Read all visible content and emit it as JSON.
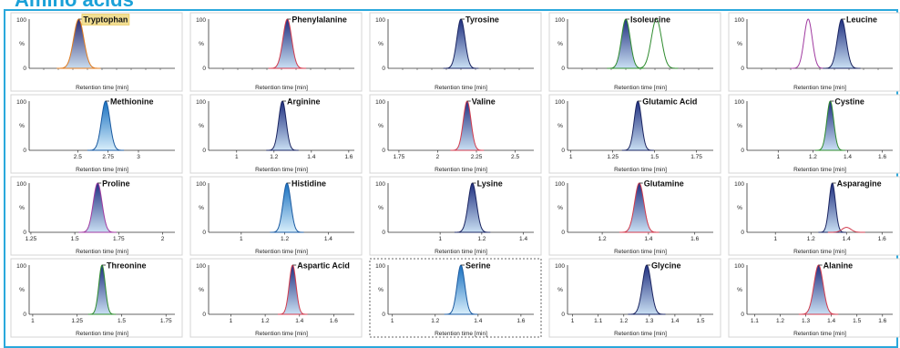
{
  "header": {
    "title": "Amino acids"
  },
  "colors": {
    "accent": "#2aa8dc",
    "peak_dark": "#1f2f80",
    "peak_light": "#c9dff3",
    "peak_cyan_dark": "#1770c0",
    "peak_cyan_light": "#d8eefb",
    "trace_red": "#d13a4c",
    "trace_green": "#2e8b2e",
    "trace_purple": "#a03aa0",
    "label_highlight": "#f3df92"
  },
  "chart_data": [
    {
      "type": "line",
      "title": "Tryptophan",
      "highlight": true,
      "xlabel": "Retention time [min]",
      "ylabel": "%",
      "y_ticks": [
        "100",
        "0"
      ],
      "x_ticks": [],
      "xlim": [
        0,
        10
      ],
      "ylim": [
        0,
        100
      ],
      "peaks": [
        {
          "center": 3.4,
          "width": 0.35,
          "height": 100,
          "style": "orange"
        }
      ]
    },
    {
      "type": "line",
      "title": "Phenylalanine",
      "xlabel": "Retention time [min]",
      "ylabel": "%",
      "y_ticks": [
        "100",
        "0"
      ],
      "x_ticks": [],
      "xlim": [
        0,
        10
      ],
      "ylim": [
        0,
        100
      ],
      "peaks": [
        {
          "center": 5.4,
          "width": 0.3,
          "height": 100,
          "style": "red"
        }
      ]
    },
    {
      "type": "line",
      "title": "Tyrosine",
      "xlabel": "Retention time [min]",
      "ylabel": "%",
      "y_ticks": [
        "100",
        "0"
      ],
      "x_ticks": [],
      "xlim": [
        0,
        10
      ],
      "ylim": [
        0,
        100
      ],
      "peaks": [
        {
          "center": 5.0,
          "width": 0.28,
          "height": 100,
          "style": "dark"
        }
      ]
    },
    {
      "type": "line",
      "title": "Isoleucine",
      "xlabel": "Retention time [min]",
      "ylabel": "%",
      "y_ticks": [
        "100",
        "0"
      ],
      "x_ticks": [],
      "xlim": [
        0,
        10
      ],
      "ylim": [
        0,
        100
      ],
      "peaks": [
        {
          "center": 4.0,
          "width": 0.3,
          "height": 100,
          "style": "green"
        },
        {
          "center": 6.1,
          "width": 0.35,
          "height": 100,
          "style": "green_outline"
        }
      ]
    },
    {
      "type": "line",
      "title": "Leucine",
      "xlabel": "Retention time [min]",
      "ylabel": "%",
      "y_ticks": [
        "100",
        "0"
      ],
      "x_ticks": [],
      "xlim": [
        0,
        10
      ],
      "ylim": [
        0,
        100
      ],
      "peaks": [
        {
          "center": 4.2,
          "width": 0.28,
          "height": 100,
          "style": "purple_outline"
        },
        {
          "center": 6.5,
          "width": 0.3,
          "height": 100,
          "style": "dark"
        }
      ]
    },
    {
      "type": "line",
      "title": "Methionine",
      "xlabel": "Retention time [min]",
      "ylabel": "%",
      "y_ticks": [
        "100",
        "0"
      ],
      "x_ticks": [
        "2.5",
        "2.75",
        "3"
      ],
      "xlim": [
        2.1,
        3.3
      ],
      "ylim": [
        0,
        100
      ],
      "peaks": [
        {
          "center": 2.73,
          "width": 0.035,
          "height": 100,
          "style": "cyan"
        }
      ]
    },
    {
      "type": "line",
      "title": "Arginine",
      "xlabel": "Retention time [min]",
      "ylabel": "%",
      "y_ticks": [
        "100",
        "0"
      ],
      "x_ticks": [
        "1",
        "1.2",
        "1.4",
        "1.6"
      ],
      "xlim": [
        0.85,
        1.63
      ],
      "ylim": [
        0,
        100
      ],
      "peaks": [
        {
          "center": 1.245,
          "width": 0.02,
          "height": 100,
          "style": "dark"
        }
      ]
    },
    {
      "type": "line",
      "title": "Valine",
      "xlabel": "Retention time [min]",
      "ylabel": "%",
      "y_ticks": [
        "100",
        "0"
      ],
      "x_ticks": [
        "1.75",
        "2",
        "2.25",
        "2.5"
      ],
      "xlim": [
        1.68,
        2.62
      ],
      "ylim": [
        0,
        100
      ],
      "peaks": [
        {
          "center": 2.19,
          "width": 0.025,
          "height": 100,
          "style": "red"
        }
      ]
    },
    {
      "type": "line",
      "title": "Glutamic Acid",
      "xlabel": "Retention time [min]",
      "ylabel": "%",
      "y_ticks": [
        "100",
        "0"
      ],
      "x_ticks": [
        "1",
        "1.25",
        "1.5",
        "1.75"
      ],
      "xlim": [
        0.98,
        1.85
      ],
      "ylim": [
        0,
        100
      ],
      "peaks": [
        {
          "center": 1.4,
          "width": 0.022,
          "height": 100,
          "style": "dark"
        }
      ]
    },
    {
      "type": "line",
      "title": "Cystine",
      "xlabel": "Retention time [min]",
      "ylabel": "%",
      "y_ticks": [
        "100",
        "0"
      ],
      "x_ticks": [
        "1",
        "1.2",
        "1.4",
        "1.6"
      ],
      "xlim": [
        0.82,
        1.66
      ],
      "ylim": [
        0,
        100
      ],
      "peaks": [
        {
          "center": 1.3,
          "width": 0.02,
          "height": 100,
          "style": "green"
        }
      ]
    },
    {
      "type": "line",
      "title": "Proline",
      "xlabel": "Retention time [min]",
      "ylabel": "%",
      "y_ticks": [
        "100",
        "0"
      ],
      "x_ticks": [
        "1.25",
        "1.5",
        "1.75",
        "2"
      ],
      "xlim": [
        1.24,
        2.07
      ],
      "ylim": [
        0,
        100
      ],
      "peaks": [
        {
          "center": 1.63,
          "width": 0.025,
          "height": 100,
          "style": "purple"
        }
      ]
    },
    {
      "type": "line",
      "title": "Histidine",
      "xlabel": "Retention time [min]",
      "ylabel": "%",
      "y_ticks": [
        "100",
        "0"
      ],
      "x_ticks": [
        "1",
        "1.2",
        "1.4"
      ],
      "xlim": [
        0.85,
        1.52
      ],
      "ylim": [
        0,
        100
      ],
      "peaks": [
        {
          "center": 1.21,
          "width": 0.018,
          "height": 100,
          "style": "cyan"
        }
      ]
    },
    {
      "type": "line",
      "title": "Lysine",
      "xlabel": "Retention time [min]",
      "ylabel": "%",
      "y_ticks": [
        "100",
        "0"
      ],
      "x_ticks": [
        "1",
        "1.2",
        "1.4"
      ],
      "xlim": [
        0.75,
        1.45
      ],
      "ylim": [
        0,
        100
      ],
      "peaks": [
        {
          "center": 1.155,
          "width": 0.02,
          "height": 100,
          "style": "dark"
        }
      ]
    },
    {
      "type": "line",
      "title": "Glutamine",
      "xlabel": "Retention time [min]",
      "ylabel": "%",
      "y_ticks": [
        "100",
        "0"
      ],
      "x_ticks": [
        "1.2",
        "1.4",
        "1.6"
      ],
      "xlim": [
        1.05,
        1.68
      ],
      "ylim": [
        0,
        100
      ],
      "peaks": [
        {
          "center": 1.36,
          "width": 0.02,
          "height": 100,
          "style": "red"
        }
      ]
    },
    {
      "type": "line",
      "title": "Asparagine",
      "xlabel": "Retention time [min]",
      "ylabel": "%",
      "y_ticks": [
        "100",
        "0"
      ],
      "x_ticks": [
        "1",
        "1.2",
        "1.4",
        "1.6"
      ],
      "xlim": [
        0.84,
        1.66
      ],
      "ylim": [
        0,
        100
      ],
      "peaks": [
        {
          "center": 1.32,
          "width": 0.018,
          "height": 100,
          "style": "dark"
        },
        {
          "center": 1.4,
          "width": 0.025,
          "height": 10,
          "style": "red_outline"
        }
      ]
    },
    {
      "type": "line",
      "title": "Threonine",
      "xlabel": "Retention time [min]",
      "ylabel": "%",
      "y_ticks": [
        "100",
        "0"
      ],
      "x_ticks": [
        "1",
        "1.25",
        "1.5",
        "1.75"
      ],
      "xlim": [
        0.98,
        1.8
      ],
      "ylim": [
        0,
        100
      ],
      "peaks": [
        {
          "center": 1.39,
          "width": 0.018,
          "height": 100,
          "style": "green"
        }
      ]
    },
    {
      "type": "line",
      "title": "Aspartic Acid",
      "xlabel": "Retention time [min]",
      "ylabel": "%",
      "y_ticks": [
        "100",
        "0"
      ],
      "x_ticks": [
        "1",
        "1.2",
        "1.4",
        "1.6"
      ],
      "xlim": [
        0.87,
        1.72
      ],
      "ylim": [
        0,
        100
      ],
      "peaks": [
        {
          "center": 1.36,
          "width": 0.02,
          "height": 100,
          "style": "red"
        }
      ]
    },
    {
      "type": "line",
      "title": "Serine",
      "xlabel": "Retention time [min]",
      "ylabel": "%",
      "y_ticks": [
        "100",
        "0"
      ],
      "x_ticks": [
        "1",
        "1.2",
        "1.4",
        "1.6"
      ],
      "xlim": [
        0.98,
        1.66
      ],
      "ylim": [
        0,
        100
      ],
      "peaks": [
        {
          "center": 1.32,
          "width": 0.018,
          "height": 100,
          "style": "cyan"
        }
      ]
    },
    {
      "type": "line",
      "title": "Glycine",
      "xlabel": "Retention time [min]",
      "ylabel": "%",
      "y_ticks": [
        "100",
        "0"
      ],
      "x_ticks": [
        "1",
        "1.1",
        "1.2",
        "1.3",
        "1.4",
        "1.5"
      ],
      "xlim": [
        0.98,
        1.55
      ],
      "ylim": [
        0,
        100
      ],
      "peaks": [
        {
          "center": 1.29,
          "width": 0.017,
          "height": 100,
          "style": "dark"
        }
      ]
    },
    {
      "type": "line",
      "title": "Alanine",
      "xlabel": "Retention time [min]",
      "ylabel": "%",
      "y_ticks": [
        "100",
        "0"
      ],
      "x_ticks": [
        "1.1",
        "1.2",
        "1.3",
        "1.4",
        "1.5",
        "1.6"
      ],
      "xlim": [
        1.07,
        1.64
      ],
      "ylim": [
        0,
        100
      ],
      "peaks": [
        {
          "center": 1.35,
          "width": 0.018,
          "height": 100,
          "style": "red"
        }
      ]
    }
  ]
}
